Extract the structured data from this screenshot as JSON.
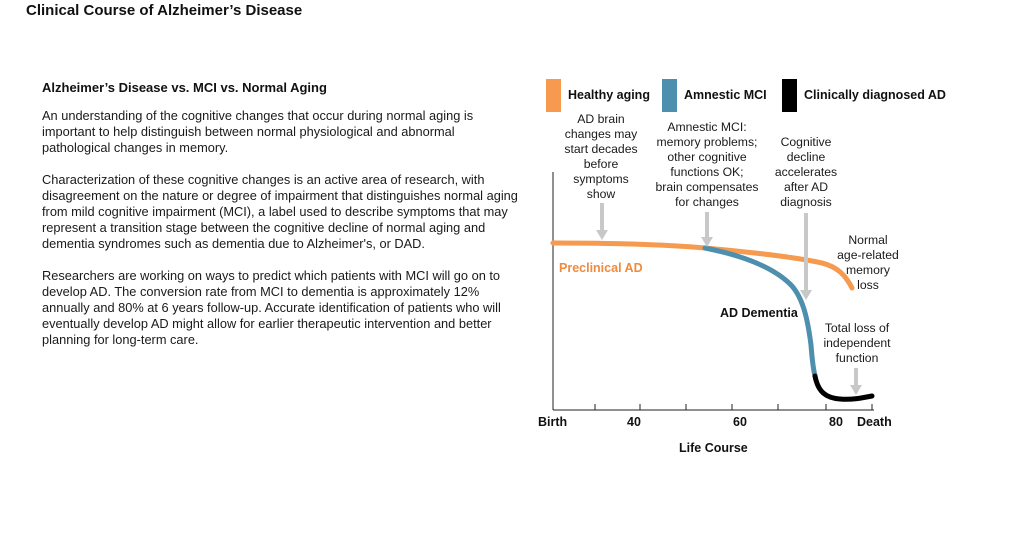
{
  "title": "Clinical Course of Alzheimer’s Disease",
  "text_panel": {
    "heading": "Alzheimer’s Disease vs. MCI vs. Normal Aging",
    "paragraphs": [
      "An understanding of the cognitive changes that occur during normal aging is important to help distinguish between normal physiological and abnormal pathological changes in memory.",
      "Characterization of these cognitive changes is an active area of research, with disagreement on the nature or degree of impairment that distinguishes normal aging from mild cognitive impairment (MCI), a label used to describe symptoms that may represent a transition stage between the cognitive decline of normal aging and dementia syndromes such as dementia due to Alzheimer's, or DAD.",
      "Researchers are working on ways to predict which patients with MCI will go on to develop AD. The conversion rate from MCI to dementia is approximately 12% annually and 80% at 6 years follow-up. Accurate identification of patients who will eventually develop AD might allow for earlier therapeutic intervention and better planning for long-term care."
    ]
  },
  "legend": {
    "items": [
      {
        "label": "Healthy aging",
        "color": "#f59a4e"
      },
      {
        "label": "Amnestic MCI",
        "color": "#4f8fae"
      },
      {
        "label": "Clinically diagnosed AD",
        "color": "#000000"
      }
    ]
  },
  "annotations": {
    "ad_brain_changes": [
      "AD brain",
      "changes may",
      "start decades",
      "before",
      "symptoms",
      "show"
    ],
    "amnestic_mci": [
      "Amnestic MCI:",
      "memory problems;",
      "other cognitive",
      "functions OK;",
      "brain compensates",
      "for changes"
    ],
    "cognitive_decline": [
      "Cognitive",
      "decline",
      "accelerates",
      "after AD",
      "diagnosis"
    ],
    "normal_aging": [
      "Normal",
      "age-related",
      "memory",
      "loss"
    ],
    "total_loss": [
      "Total loss of",
      "independent",
      "function"
    ]
  },
  "stage_labels": {
    "preclinical": "Preclinical AD",
    "dementia": "AD Dementia"
  },
  "axis": {
    "x_tick_labels": [
      "Birth",
      "40",
      "60",
      "80",
      "Death"
    ],
    "x_title": "Life Course"
  },
  "colors": {
    "healthy": "#f59a4e",
    "mci": "#4f8fae",
    "ad": "#000000",
    "arrow": "#c8c8c8",
    "preclinical_text": "#f08a3c"
  }
}
